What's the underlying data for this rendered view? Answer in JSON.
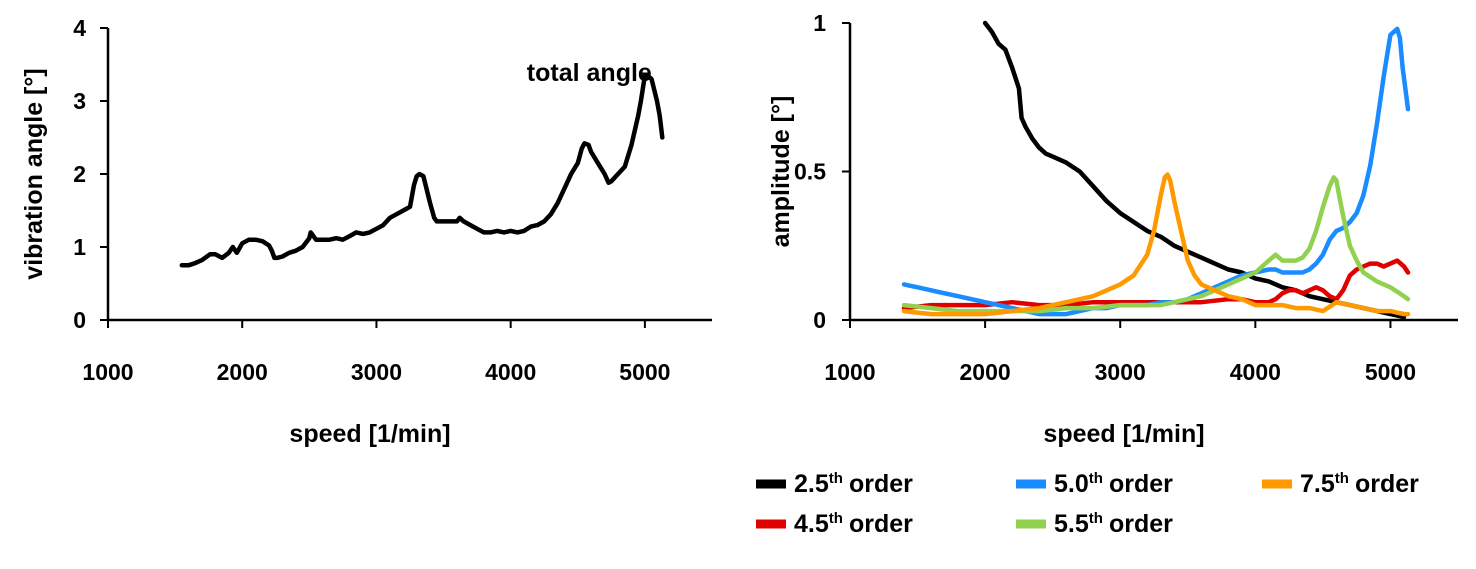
{
  "chart_data": [
    {
      "type": "line",
      "xlabel": "speed [1/min]",
      "ylabel": "vibration angle [°]",
      "xlim": [
        1000,
        5500
      ],
      "ylim": [
        0,
        4
      ],
      "xticks": [
        "1000",
        "2000",
        "3000",
        "4000",
        "5000"
      ],
      "yticks": [
        "0",
        "1",
        "2",
        "3",
        "4"
      ],
      "grid": false,
      "annotations": [
        {
          "text": "total angle",
          "x": 4150,
          "y": 3.3
        }
      ],
      "series": [
        {
          "color": "#000000",
          "x": [
            1550,
            1600,
            1650,
            1700,
            1760,
            1800,
            1850,
            1900,
            1930,
            1960,
            2000,
            2050,
            2100,
            2150,
            2200,
            2220,
            2240,
            2260,
            2300,
            2350,
            2400,
            2450,
            2500,
            2510,
            2530,
            2550,
            2600,
            2650,
            2700,
            2750,
            2800,
            2850,
            2900,
            2950,
            3000,
            3050,
            3100,
            3150,
            3200,
            3250,
            3280,
            3300,
            3320,
            3350,
            3380,
            3400,
            3430,
            3450,
            3500,
            3550,
            3600,
            3620,
            3650,
            3700,
            3750,
            3800,
            3850,
            3900,
            3950,
            4000,
            4050,
            4100,
            4150,
            4200,
            4250,
            4300,
            4350,
            4400,
            4450,
            4500,
            4530,
            4550,
            4580,
            4600,
            4650,
            4700,
            4730,
            4750,
            4800,
            4850,
            4900,
            4950,
            4970,
            5000,
            5020,
            5050,
            5070,
            5090,
            5110,
            5130
          ],
          "y": [
            0.75,
            0.75,
            0.78,
            0.82,
            0.9,
            0.9,
            0.85,
            0.92,
            1.0,
            0.92,
            1.05,
            1.1,
            1.1,
            1.08,
            1.02,
            0.95,
            0.85,
            0.85,
            0.87,
            0.92,
            0.95,
            1.0,
            1.12,
            1.2,
            1.15,
            1.1,
            1.1,
            1.1,
            1.12,
            1.1,
            1.15,
            1.2,
            1.18,
            1.2,
            1.25,
            1.3,
            1.4,
            1.45,
            1.5,
            1.55,
            1.85,
            1.97,
            2.0,
            1.97,
            1.75,
            1.6,
            1.4,
            1.35,
            1.35,
            1.35,
            1.35,
            1.4,
            1.35,
            1.3,
            1.25,
            1.2,
            1.2,
            1.22,
            1.2,
            1.22,
            1.2,
            1.22,
            1.28,
            1.3,
            1.35,
            1.45,
            1.6,
            1.8,
            2.0,
            2.15,
            2.35,
            2.42,
            2.4,
            2.3,
            2.15,
            2.0,
            1.88,
            1.9,
            2.0,
            2.1,
            2.4,
            2.8,
            3.0,
            3.35,
            3.35,
            3.3,
            3.15,
            3.0,
            2.8,
            2.5
          ]
        }
      ]
    },
    {
      "type": "line",
      "xlabel": "speed [1/min]",
      "ylabel": "amplitude [°]",
      "xlim": [
        1000,
        5500
      ],
      "ylim": [
        0,
        1
      ],
      "xticks": [
        "1000",
        "2000",
        "3000",
        "4000",
        "5000"
      ],
      "yticks": [
        "0",
        "0.5",
        "1"
      ],
      "grid": false,
      "legend": "bottom",
      "series": [
        {
          "name": "2.5",
          "suffix": "th",
          "label": "order",
          "color": "#000000",
          "x": [
            2000,
            2050,
            2100,
            2150,
            2200,
            2250,
            2270,
            2300,
            2350,
            2400,
            2450,
            2500,
            2600,
            2700,
            2800,
            2900,
            3000,
            3100,
            3200,
            3300,
            3400,
            3500,
            3600,
            3700,
            3800,
            3900,
            4000,
            4100,
            4200,
            4300,
            4400,
            4500,
            4600,
            4700,
            4800,
            4900,
            5000,
            5100
          ],
          "y": [
            1.0,
            0.97,
            0.93,
            0.91,
            0.85,
            0.78,
            0.68,
            0.65,
            0.61,
            0.58,
            0.56,
            0.55,
            0.53,
            0.5,
            0.45,
            0.4,
            0.36,
            0.33,
            0.3,
            0.28,
            0.25,
            0.23,
            0.21,
            0.19,
            0.17,
            0.16,
            0.14,
            0.13,
            0.11,
            0.1,
            0.08,
            0.07,
            0.06,
            0.05,
            0.04,
            0.03,
            0.02,
            0.01
          ]
        },
        {
          "name": "4.5",
          "suffix": "th",
          "label": "order",
          "color": "#e00000",
          "x": [
            1400,
            1600,
            1800,
            2000,
            2200,
            2400,
            2600,
            2800,
            3000,
            3200,
            3400,
            3600,
            3800,
            3900,
            4000,
            4100,
            4150,
            4200,
            4250,
            4300,
            4350,
            4400,
            4450,
            4500,
            4550,
            4600,
            4650,
            4700,
            4750,
            4800,
            4850,
            4900,
            4950,
            5000,
            5050,
            5100,
            5130
          ],
          "y": [
            0.04,
            0.05,
            0.05,
            0.05,
            0.06,
            0.05,
            0.05,
            0.06,
            0.06,
            0.06,
            0.06,
            0.06,
            0.07,
            0.07,
            0.06,
            0.06,
            0.07,
            0.09,
            0.1,
            0.1,
            0.09,
            0.1,
            0.11,
            0.1,
            0.08,
            0.07,
            0.1,
            0.15,
            0.17,
            0.18,
            0.19,
            0.19,
            0.18,
            0.19,
            0.2,
            0.18,
            0.16
          ]
        },
        {
          "name": "5.0",
          "suffix": "th",
          "label": "order",
          "color": "#1a8cff",
          "x": [
            1400,
            1500,
            1600,
            1700,
            1800,
            1900,
            2000,
            2100,
            2200,
            2300,
            2400,
            2500,
            2600,
            2700,
            2800,
            2900,
            3000,
            3100,
            3200,
            3300,
            3400,
            3500,
            3600,
            3700,
            3800,
            3900,
            4000,
            4100,
            4150,
            4200,
            4250,
            4300,
            4350,
            4400,
            4450,
            4500,
            4550,
            4600,
            4650,
            4700,
            4750,
            4800,
            4850,
            4900,
            4950,
            5000,
            5050,
            5070,
            5090,
            5110,
            5130
          ],
          "y": [
            0.12,
            0.11,
            0.1,
            0.09,
            0.08,
            0.07,
            0.06,
            0.05,
            0.04,
            0.03,
            0.02,
            0.02,
            0.02,
            0.03,
            0.04,
            0.04,
            0.05,
            0.05,
            0.05,
            0.06,
            0.06,
            0.07,
            0.09,
            0.11,
            0.13,
            0.15,
            0.16,
            0.17,
            0.17,
            0.16,
            0.16,
            0.16,
            0.16,
            0.17,
            0.19,
            0.22,
            0.27,
            0.3,
            0.31,
            0.33,
            0.36,
            0.42,
            0.52,
            0.66,
            0.82,
            0.96,
            0.98,
            0.95,
            0.85,
            0.78,
            0.71
          ]
        },
        {
          "name": "5.5",
          "suffix": "th",
          "label": "order",
          "color": "#92d050",
          "x": [
            1400,
            1600,
            1800,
            2000,
            2200,
            2400,
            2600,
            2800,
            3000,
            3200,
            3300,
            3400,
            3500,
            3600,
            3700,
            3800,
            3900,
            4000,
            4050,
            4100,
            4150,
            4200,
            4250,
            4300,
            4350,
            4400,
            4450,
            4500,
            4550,
            4580,
            4600,
            4620,
            4650,
            4700,
            4750,
            4800,
            4900,
            5000,
            5100,
            5130
          ],
          "y": [
            0.05,
            0.04,
            0.03,
            0.03,
            0.03,
            0.03,
            0.04,
            0.04,
            0.05,
            0.05,
            0.05,
            0.06,
            0.07,
            0.08,
            0.1,
            0.12,
            0.14,
            0.16,
            0.18,
            0.2,
            0.22,
            0.2,
            0.2,
            0.2,
            0.21,
            0.24,
            0.3,
            0.38,
            0.45,
            0.48,
            0.47,
            0.42,
            0.35,
            0.25,
            0.2,
            0.16,
            0.13,
            0.11,
            0.08,
            0.07
          ]
        },
        {
          "name": "7.5",
          "suffix": "th",
          "label": "order",
          "color": "#ff9900",
          "x": [
            1400,
            1600,
            1800,
            2000,
            2200,
            2400,
            2600,
            2800,
            2900,
            3000,
            3100,
            3200,
            3250,
            3300,
            3330,
            3350,
            3370,
            3400,
            3450,
            3500,
            3550,
            3600,
            3700,
            3800,
            3900,
            4000,
            4100,
            4200,
            4300,
            4400,
            4500,
            4600,
            4700,
            4800,
            4900,
            5000,
            5100,
            5130
          ],
          "y": [
            0.03,
            0.02,
            0.02,
            0.02,
            0.03,
            0.04,
            0.06,
            0.08,
            0.1,
            0.12,
            0.15,
            0.22,
            0.3,
            0.42,
            0.48,
            0.49,
            0.47,
            0.4,
            0.3,
            0.2,
            0.15,
            0.12,
            0.1,
            0.08,
            0.07,
            0.05,
            0.05,
            0.05,
            0.04,
            0.04,
            0.03,
            0.06,
            0.05,
            0.04,
            0.03,
            0.03,
            0.02,
            0.02
          ]
        }
      ]
    }
  ]
}
